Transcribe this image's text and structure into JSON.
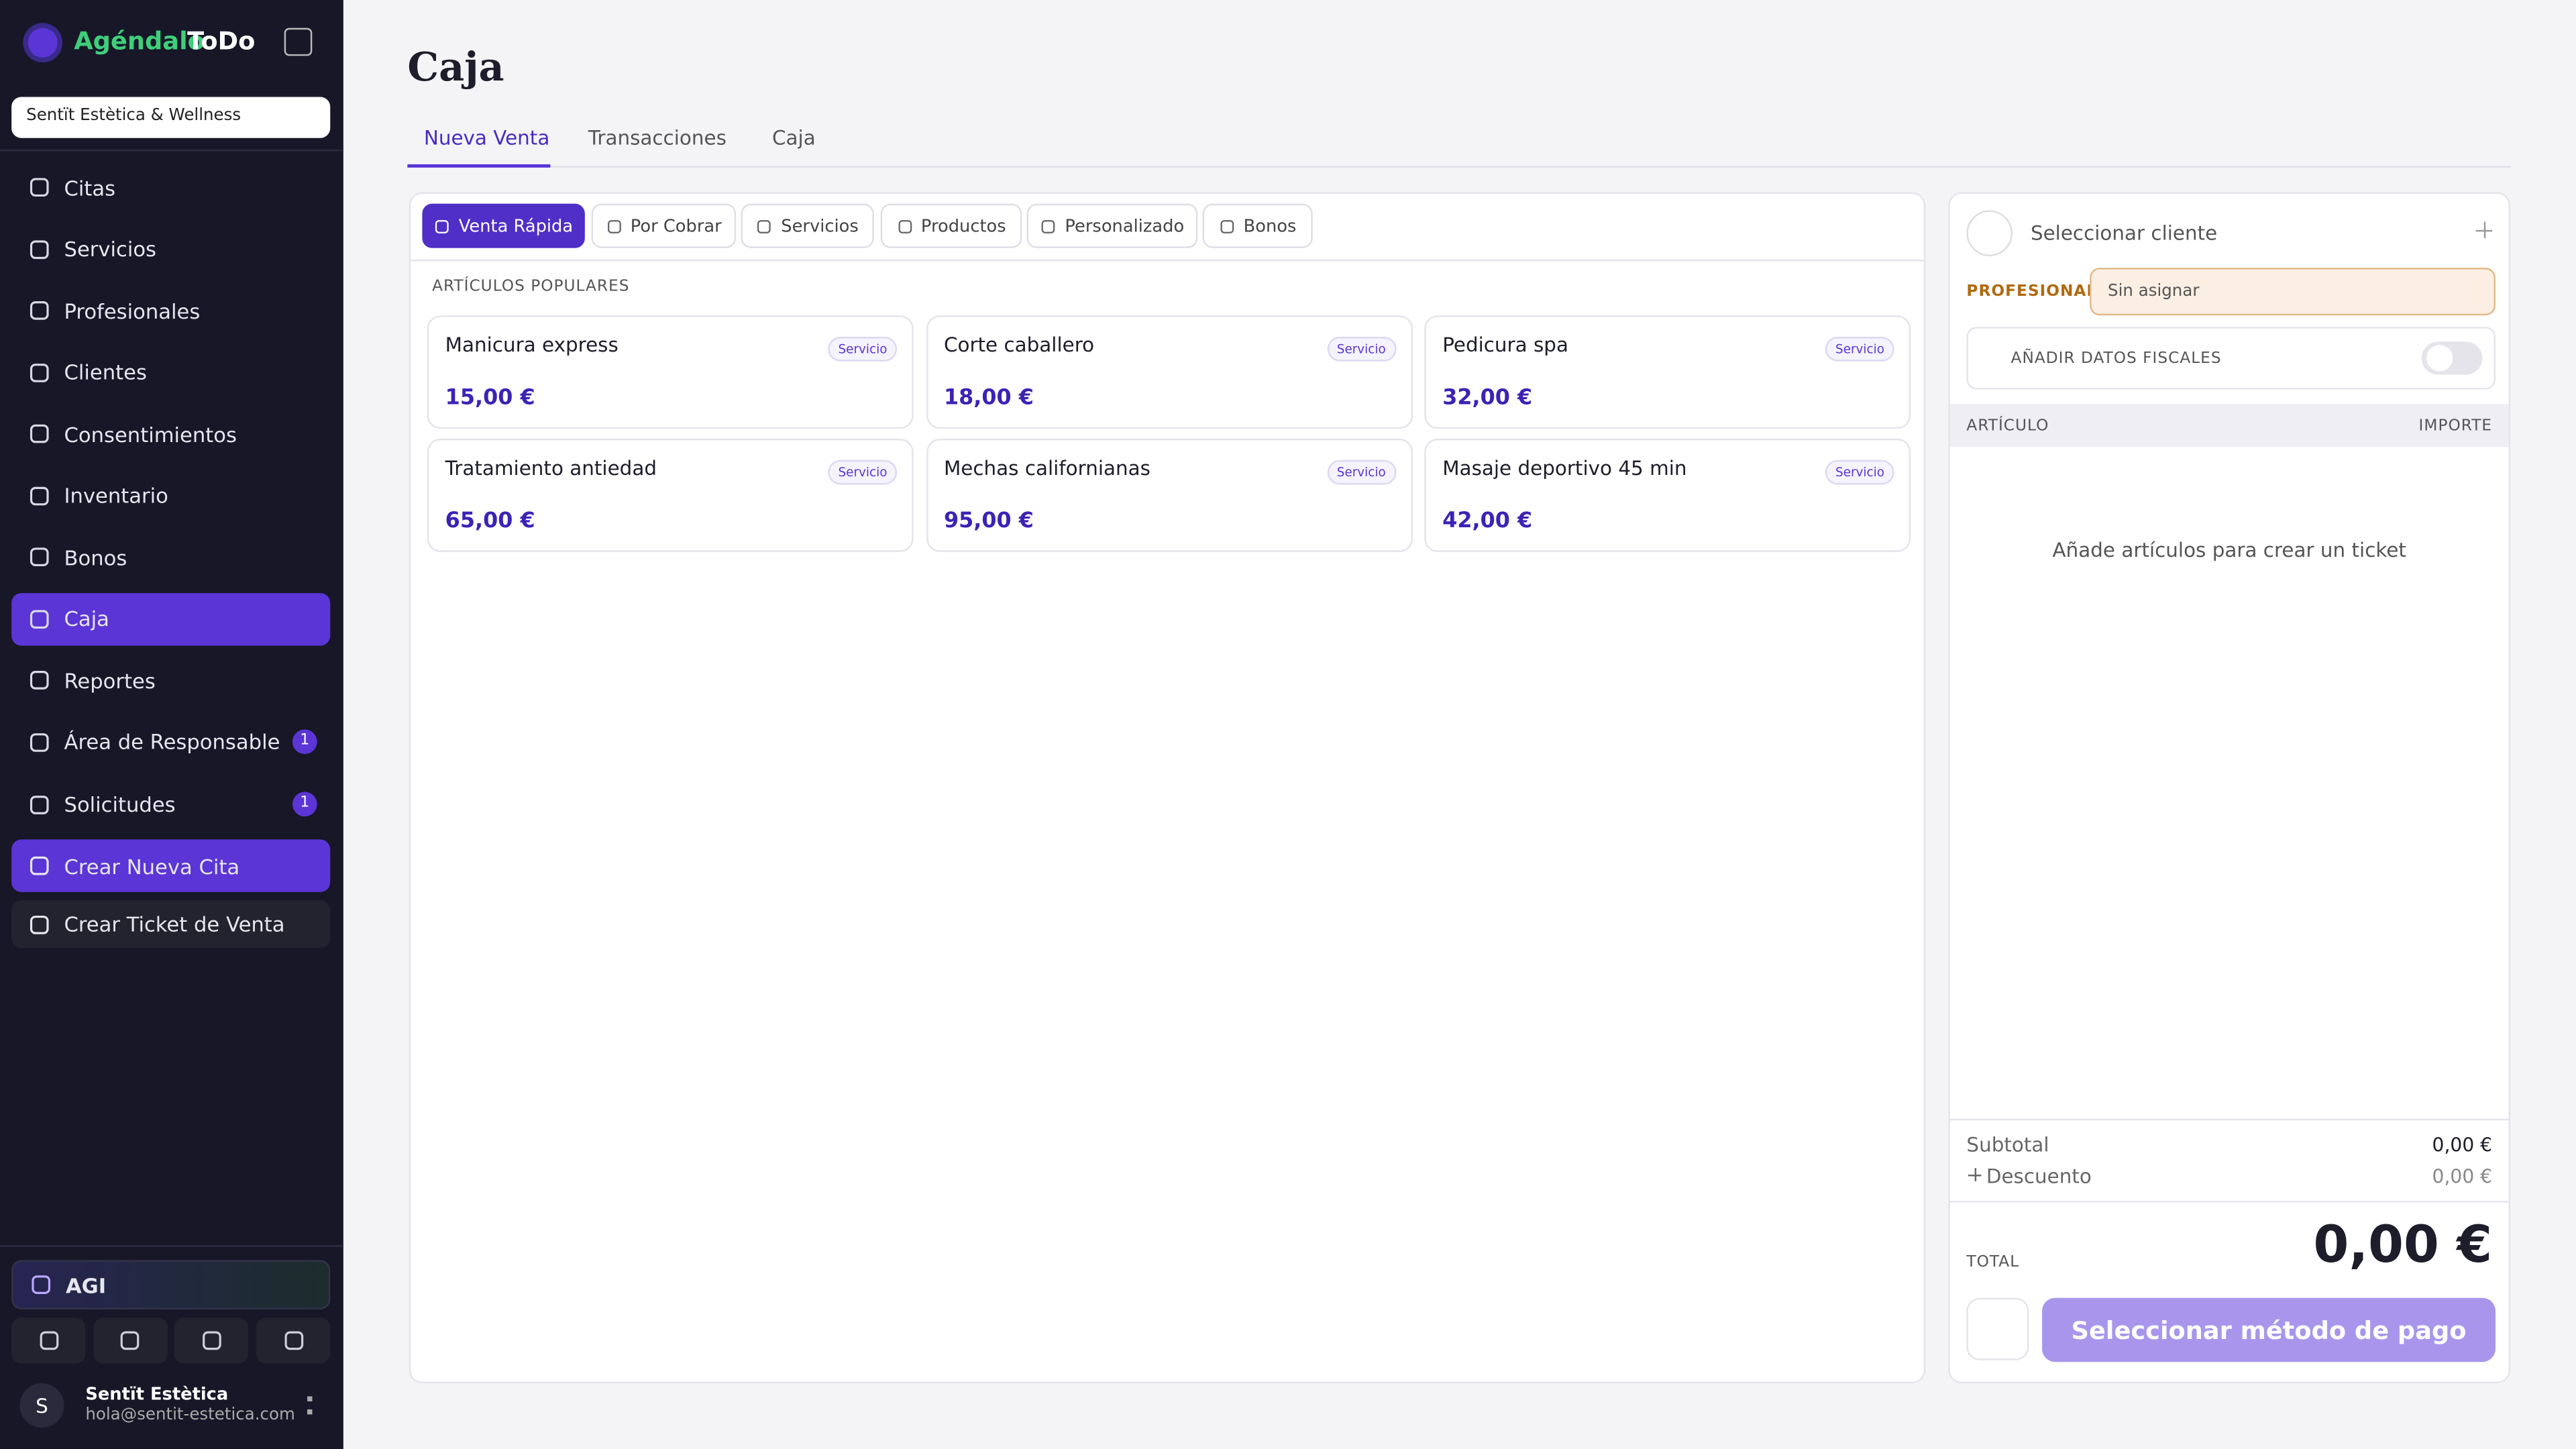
{
  "brand": {
    "name_a": "Agéndalo",
    "name_b": "ToDo"
  },
  "business": "Sentït Estètica & Wellness",
  "nav": [
    {
      "label": "Citas"
    },
    {
      "label": "Servicios"
    },
    {
      "label": "Profesionales"
    },
    {
      "label": "Clientes"
    },
    {
      "label": "Consentimientos"
    },
    {
      "label": "Inventario"
    },
    {
      "label": "Bonos"
    },
    {
      "label": "Caja"
    },
    {
      "label": "Reportes"
    },
    {
      "label": "Área de Responsable",
      "badge": "1"
    },
    {
      "label": "Solicitudes",
      "badge": "1"
    }
  ],
  "actions": [
    "Crear Nueva Cita",
    "Crear Ticket de Venta"
  ],
  "agi": "AGI",
  "user": {
    "initial": "S",
    "name": "Sentït Estètica",
    "email": "hola@sentit-estetica.com"
  },
  "page": {
    "title": "Caja",
    "tabs": [
      "Nueva Venta",
      "Transacciones",
      "Caja"
    ]
  },
  "filters": [
    "Venta Rápida",
    "Por Cobrar",
    "Servicios",
    "Productos",
    "Personalizado",
    "Bonos"
  ],
  "popular_label": "ARTÍCULOS POPULARES",
  "products": [
    {
      "name": "Manicura express",
      "tag": "Servicio",
      "price": "15,00 €"
    },
    {
      "name": "Corte caballero",
      "tag": "Servicio",
      "price": "18,00 €"
    },
    {
      "name": "Pedicura spa",
      "tag": "Servicio",
      "price": "32,00 €"
    },
    {
      "name": "Tratamiento antiedad",
      "tag": "Servicio",
      "price": "65,00 €"
    },
    {
      "name": "Mechas californianas",
      "tag": "Servicio",
      "price": "95,00 €"
    },
    {
      "name": "Masaje deportivo 45 min",
      "tag": "Servicio",
      "price": "42,00 €"
    }
  ],
  "ticket": {
    "client": "Seleccionar cliente",
    "professional_label": "PROFESIONAL",
    "professional_value": "Sin asignar",
    "fiscal": "AÑADIR DATOS FISCALES",
    "col_item": "ARTÍCULO",
    "col_amount": "IMPORTE",
    "empty": "Añade artículos para crear un ticket",
    "subtotal_label": "Subtotal",
    "subtotal_value": "0,00 €",
    "discount_label": "Descuento",
    "discount_value": "0,00 €",
    "total_label": "TOTAL",
    "total_value": "0,00 €",
    "pay": "Seleccionar método de pago"
  }
}
